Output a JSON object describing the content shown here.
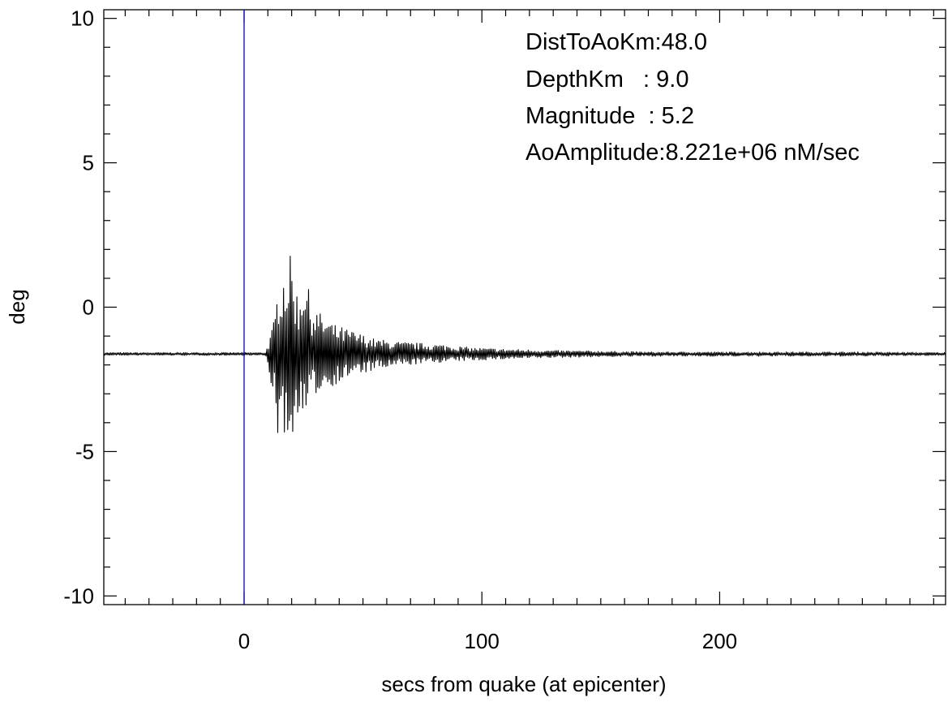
{
  "chart_data": {
    "type": "line",
    "title": "",
    "xlabel": "secs from quake (at epicenter)",
    "ylabel": "deg",
    "xlim": [
      -59,
      295
    ],
    "ylim": [
      -10.3,
      10.3
    ],
    "x_ticks": [
      0,
      100,
      200
    ],
    "x_tick_labels": [
      "0",
      "100",
      "200"
    ],
    "y_ticks": [
      10,
      5,
      0,
      -5,
      -10
    ],
    "y_tick_labels": [
      "10",
      "5",
      "0",
      "-5",
      "-10"
    ],
    "grid": false,
    "colors": {
      "trace": "#000000",
      "event_marker": "#0000cc"
    },
    "event_marker_x": 0,
    "annotations": [
      "DistToAoKm:48.0",
      "DepthKm   : 9.0",
      "Magnitude  : 5.2",
      "AoAmplitude:8.221e+06 nM/sec"
    ],
    "series": [
      {
        "values_note_free": true,
        "baseline": -1.62,
        "envelope": {
          "x": [
            -59,
            9,
            11,
            13,
            15,
            17,
            19,
            21,
            23,
            25,
            28,
            32,
            38,
            45,
            55,
            65,
            75,
            85,
            95,
            110,
            130,
            150,
            170,
            200,
            230,
            260,
            295
          ],
          "upper": [
            -1.57,
            -1.57,
            -1.0,
            -0.3,
            1.6,
            1.4,
            1.9,
            1.3,
            0.2,
            1.6,
            0.2,
            -0.2,
            -0.6,
            -0.8,
            -1.1,
            -1.2,
            -1.25,
            -1.3,
            -1.4,
            -1.45,
            -1.5,
            -1.52,
            -1.55,
            -1.55,
            -1.55,
            -1.55,
            -1.57
          ],
          "lower": [
            -1.67,
            -1.67,
            -2.5,
            -3.5,
            -5.3,
            -4.4,
            -5.2,
            -4.6,
            -3.4,
            -4.3,
            -3.2,
            -2.9,
            -2.7,
            -2.4,
            -2.2,
            -2.05,
            -1.95,
            -1.9,
            -1.85,
            -1.8,
            -1.75,
            -1.72,
            -1.7,
            -1.7,
            -1.7,
            -1.7,
            -1.67
          ]
        }
      }
    ]
  }
}
